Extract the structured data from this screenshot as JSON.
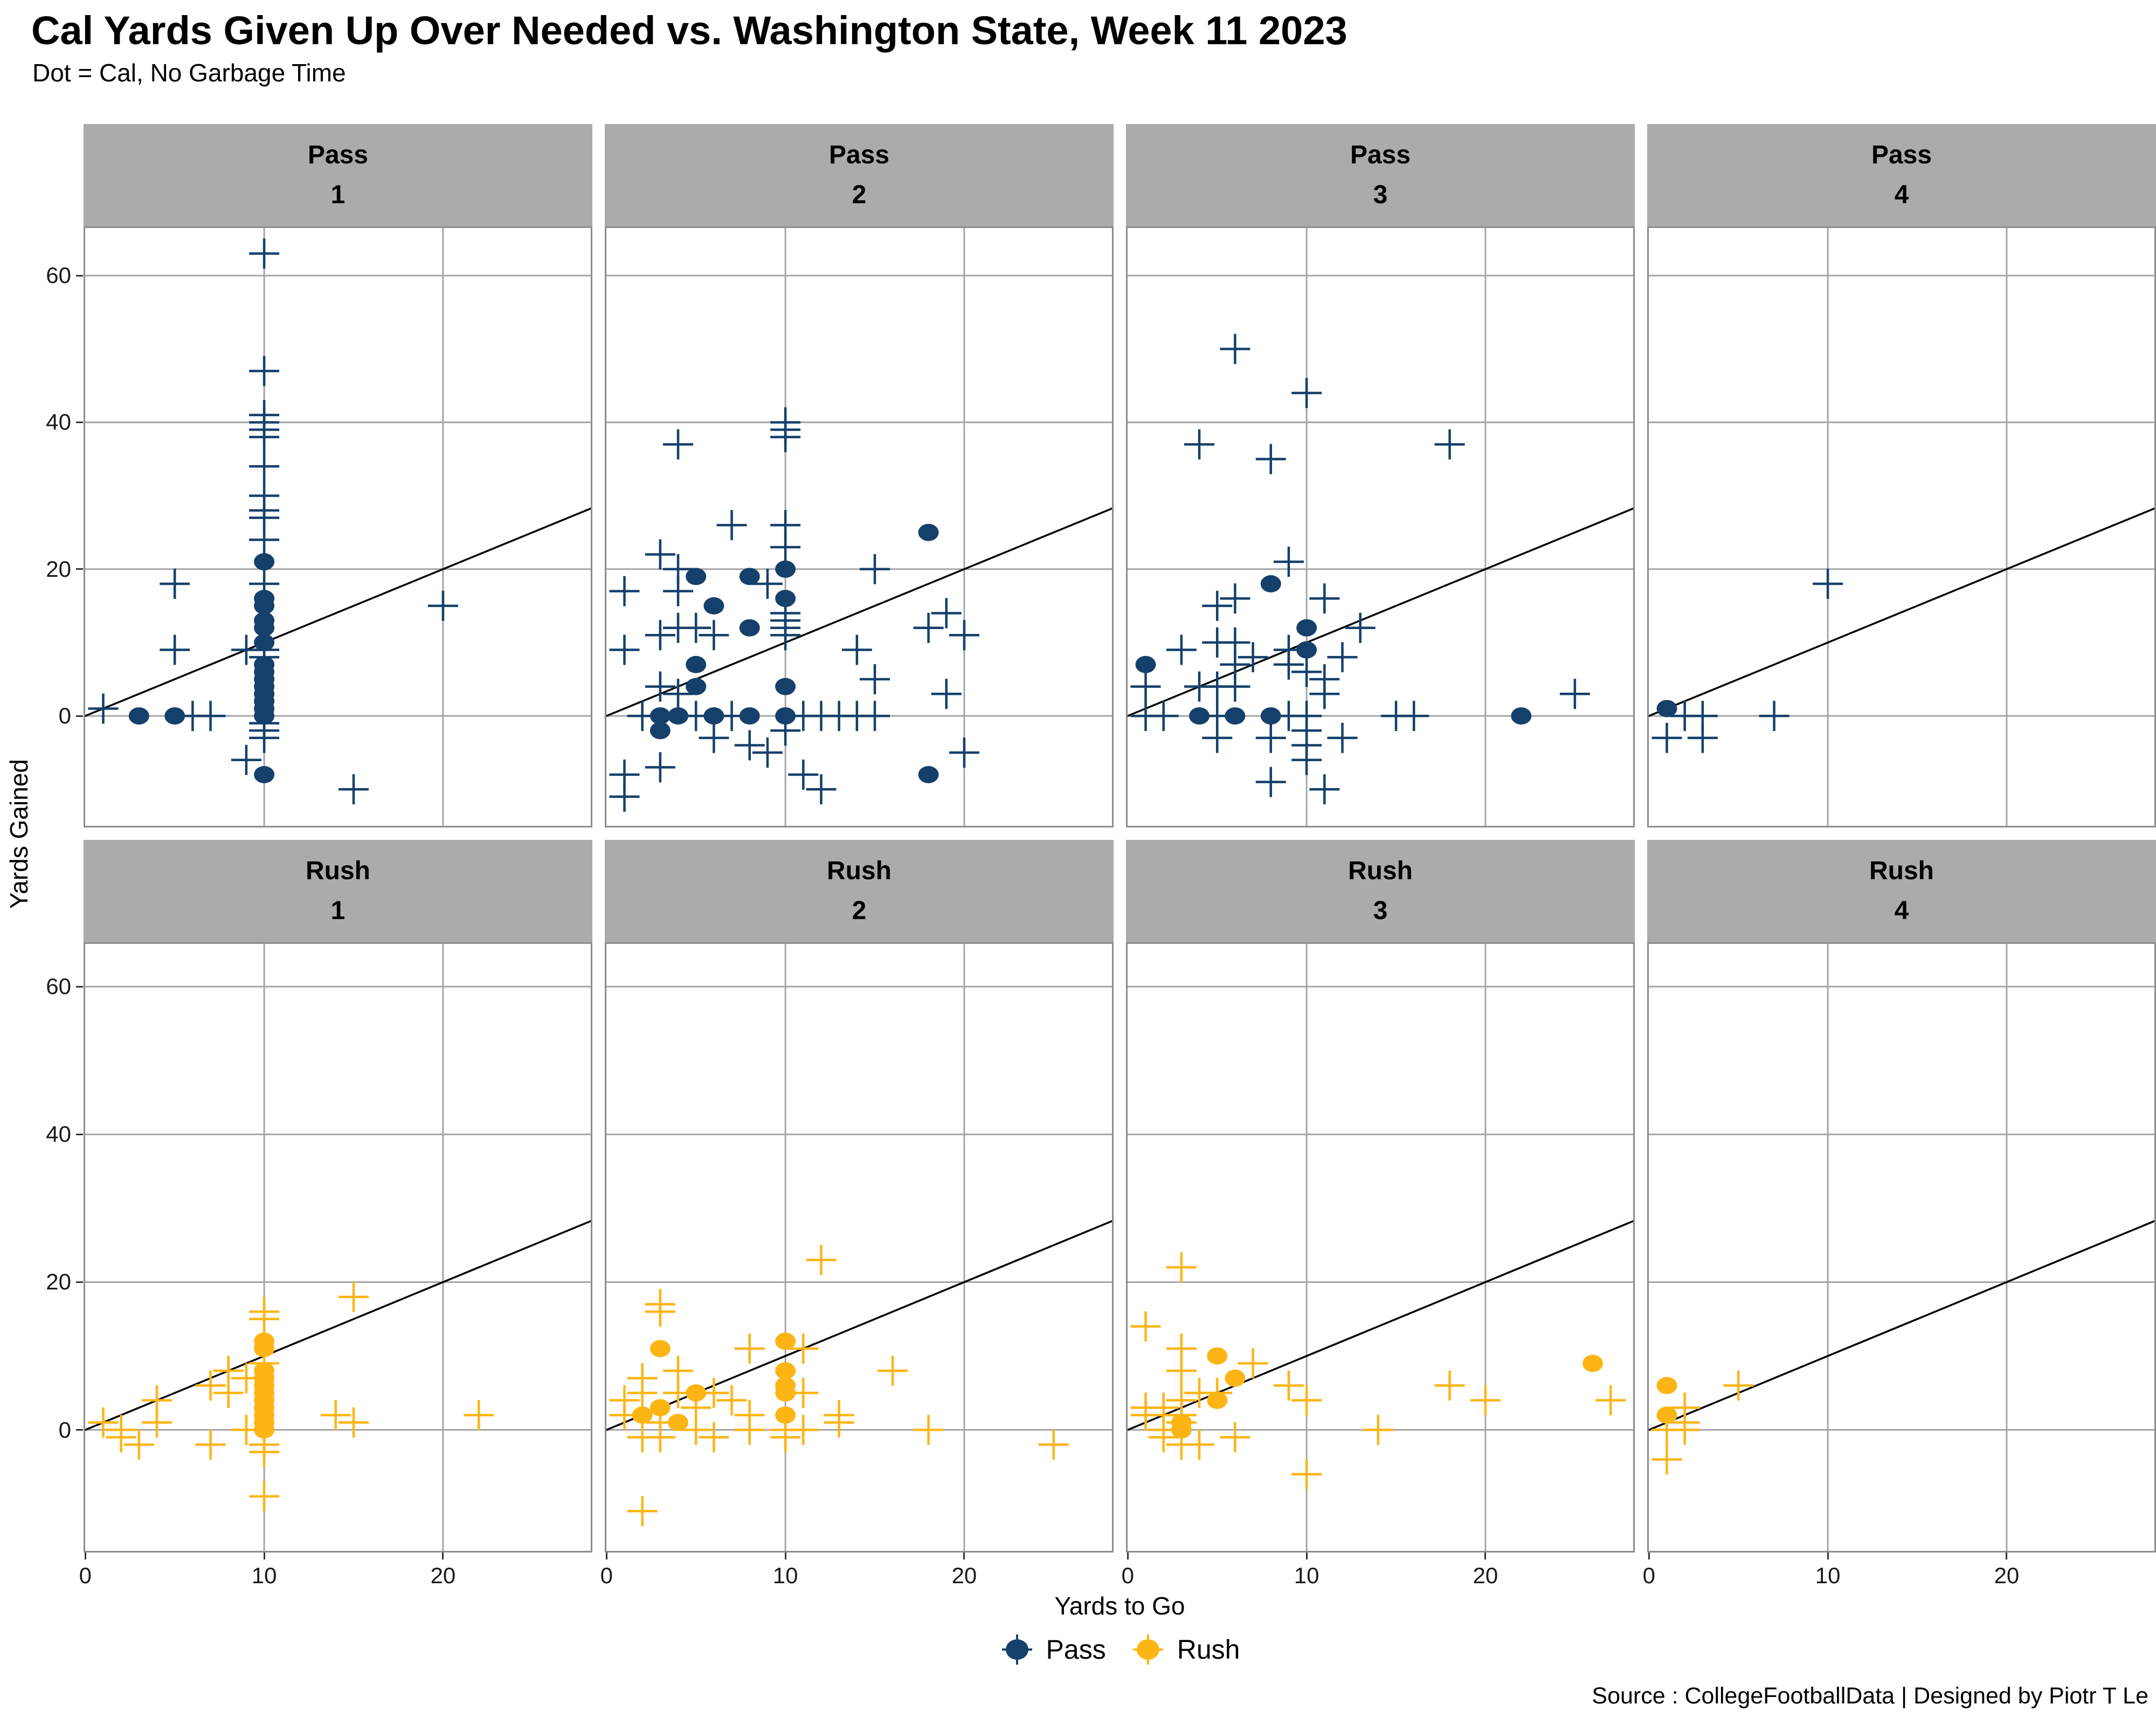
{
  "title": "Cal Yards Given Up Over Needed vs. Washington State, Week 11 2023",
  "subtitle": "Dot = Cal, No Garbage Time",
  "source": "Source : CollegeFootballData | Designed by Piotr T Le",
  "axes": {
    "x_label": "Yards to Go",
    "y_label": "Yards Gained",
    "x_ticks": [
      0,
      10,
      20
    ],
    "y_ticks": [
      60,
      40,
      20,
      0
    ]
  },
  "legend": {
    "items": [
      {
        "label": "Pass",
        "color": "#15406B"
      },
      {
        "label": "Rush",
        "color": "#FDB515"
      }
    ]
  },
  "colors": {
    "pass": "#15406B",
    "rush": "#FDB515",
    "strip_bg": "#ABABAB",
    "gridline": "#A5A5A5",
    "panel_border": "#8C8C8C",
    "reference_line": "#000000"
  },
  "chart_data": {
    "type": "scatter",
    "layout": "facet grid 2 rows (Pass, Rush) x 4 columns (downs 1-4)",
    "xlabel": "Yards to Go",
    "ylabel": "Yards Gained",
    "x_range": [
      -0.1,
      28.35
    ],
    "y_range": [
      -16,
      67
    ],
    "grid": "major gridlines at x=10,20 and y=0,20,40,60",
    "reference_line": "y = x diagonal in every facet",
    "marker_note": "dot marker = Cal (per subtitle); cross marker = unlabeled comparison plays",
    "legend_position": "bottom center",
    "facets": [
      {
        "play_type": "Pass",
        "down": "1",
        "dots": [
          [
            10,
            21
          ],
          [
            10,
            16
          ],
          [
            10,
            15
          ],
          [
            10,
            13
          ],
          [
            10,
            12
          ],
          [
            10,
            10
          ],
          [
            10,
            7
          ],
          [
            10,
            6
          ],
          [
            10,
            5
          ],
          [
            10,
            4
          ],
          [
            10,
            3
          ],
          [
            10,
            2
          ],
          [
            10,
            1
          ],
          [
            10,
            0
          ],
          [
            3,
            0
          ],
          [
            5,
            0
          ],
          [
            10,
            -8
          ]
        ],
        "crosses": [
          [
            10,
            63
          ],
          [
            10,
            47
          ],
          [
            10,
            41
          ],
          [
            10,
            40
          ],
          [
            10,
            39
          ],
          [
            10,
            38
          ],
          [
            10,
            34
          ],
          [
            10,
            30
          ],
          [
            10,
            28
          ],
          [
            10,
            27
          ],
          [
            10,
            24
          ],
          [
            5,
            18
          ],
          [
            10,
            18
          ],
          [
            20,
            15
          ],
          [
            5,
            9
          ],
          [
            9,
            9
          ],
          [
            10,
            9
          ],
          [
            10,
            8
          ],
          [
            1,
            1
          ],
          [
            6,
            0
          ],
          [
            7,
            0
          ],
          [
            10,
            -1
          ],
          [
            10,
            -2
          ],
          [
            10,
            -3
          ],
          [
            9,
            -6
          ],
          [
            15,
            -10
          ]
        ]
      },
      {
        "play_type": "Pass",
        "down": "2",
        "dots": [
          [
            18,
            25
          ],
          [
            5,
            19
          ],
          [
            8,
            19
          ],
          [
            10,
            20
          ],
          [
            10,
            16
          ],
          [
            6,
            15
          ],
          [
            8,
            12
          ],
          [
            5,
            7
          ],
          [
            5,
            4
          ],
          [
            10,
            4
          ],
          [
            3,
            0
          ],
          [
            4,
            0
          ],
          [
            6,
            0
          ],
          [
            8,
            0
          ],
          [
            10,
            0
          ],
          [
            3,
            -2
          ],
          [
            18,
            -8
          ]
        ],
        "crosses": [
          [
            4,
            37
          ],
          [
            10,
            40
          ],
          [
            10,
            39
          ],
          [
            10,
            38
          ],
          [
            7,
            26
          ],
          [
            10,
            26
          ],
          [
            10,
            23
          ],
          [
            3,
            22
          ],
          [
            4,
            20
          ],
          [
            4,
            17
          ],
          [
            9,
            18
          ],
          [
            1,
            17
          ],
          [
            15,
            20
          ],
          [
            10,
            14
          ],
          [
            10,
            13
          ],
          [
            10,
            12
          ],
          [
            10,
            11
          ],
          [
            3,
            11
          ],
          [
            4,
            12
          ],
          [
            5,
            12
          ],
          [
            6,
            11
          ],
          [
            1,
            9
          ],
          [
            18,
            12
          ],
          [
            19,
            14
          ],
          [
            20,
            11
          ],
          [
            14,
            9
          ],
          [
            15,
            5
          ],
          [
            3,
            4
          ],
          [
            4,
            3
          ],
          [
            19,
            3
          ],
          [
            2,
            0
          ],
          [
            5,
            0
          ],
          [
            7,
            0
          ],
          [
            11,
            0
          ],
          [
            12,
            0
          ],
          [
            13,
            0
          ],
          [
            14,
            0
          ],
          [
            15,
            0
          ],
          [
            10,
            -2
          ],
          [
            6,
            -3
          ],
          [
            8,
            -4
          ],
          [
            9,
            -5
          ],
          [
            3,
            -7
          ],
          [
            1,
            -8
          ],
          [
            11,
            -8
          ],
          [
            12,
            -10
          ],
          [
            1,
            -11
          ],
          [
            20,
            -5
          ]
        ]
      },
      {
        "play_type": "Pass",
        "down": "3",
        "dots": [
          [
            1,
            7
          ],
          [
            8,
            18
          ],
          [
            10,
            12
          ],
          [
            10,
            9
          ],
          [
            4,
            0
          ],
          [
            6,
            0
          ],
          [
            8,
            0
          ],
          [
            22,
            0
          ]
        ],
        "crosses": [
          [
            6,
            50
          ],
          [
            10,
            44
          ],
          [
            4,
            37
          ],
          [
            18,
            37
          ],
          [
            8,
            35
          ],
          [
            9,
            21
          ],
          [
            5,
            15
          ],
          [
            6,
            16
          ],
          [
            11,
            16
          ],
          [
            13,
            12
          ],
          [
            12,
            8
          ],
          [
            3,
            9
          ],
          [
            5,
            10
          ],
          [
            6,
            10
          ],
          [
            6,
            7
          ],
          [
            7,
            8
          ],
          [
            9,
            9
          ],
          [
            9,
            7
          ],
          [
            10,
            6
          ],
          [
            11,
            5
          ],
          [
            11,
            3
          ],
          [
            1,
            4
          ],
          [
            4,
            4
          ],
          [
            5,
            4
          ],
          [
            6,
            4
          ],
          [
            25,
            3
          ],
          [
            1,
            0
          ],
          [
            2,
            0
          ],
          [
            5,
            0
          ],
          [
            9,
            0
          ],
          [
            10,
            0
          ],
          [
            15,
            0
          ],
          [
            16,
            0
          ],
          [
            10,
            -2
          ],
          [
            10,
            -4
          ],
          [
            10,
            -6
          ],
          [
            5,
            -3
          ],
          [
            8,
            -3
          ],
          [
            12,
            -3
          ],
          [
            8,
            -9
          ],
          [
            11,
            -10
          ]
        ]
      },
      {
        "play_type": "Pass",
        "down": "4",
        "dots": [
          [
            1,
            1
          ]
        ],
        "crosses": [
          [
            10,
            18
          ],
          [
            2,
            0
          ],
          [
            3,
            0
          ],
          [
            7,
            0
          ],
          [
            1,
            -3
          ],
          [
            3,
            -3
          ]
        ]
      },
      {
        "play_type": "Rush",
        "down": "1",
        "dots": [
          [
            10,
            12
          ],
          [
            10,
            11
          ],
          [
            10,
            8
          ],
          [
            10,
            7
          ],
          [
            10,
            6
          ],
          [
            10,
            5
          ],
          [
            10,
            4
          ],
          [
            10,
            3
          ],
          [
            10,
            2
          ],
          [
            10,
            1
          ],
          [
            10,
            0
          ]
        ],
        "crosses": [
          [
            15,
            18
          ],
          [
            10,
            16
          ],
          [
            10,
            15
          ],
          [
            10,
            9
          ],
          [
            8,
            8
          ],
          [
            9,
            7
          ],
          [
            7,
            6
          ],
          [
            8,
            5
          ],
          [
            4,
            4
          ],
          [
            4,
            1
          ],
          [
            1,
            1
          ],
          [
            2,
            0
          ],
          [
            9,
            0
          ],
          [
            2,
            -1
          ],
          [
            3,
            -2
          ],
          [
            7,
            -2
          ],
          [
            10,
            -2
          ],
          [
            10,
            -3
          ],
          [
            10,
            -9
          ],
          [
            14,
            2
          ],
          [
            15,
            1
          ],
          [
            22,
            2
          ]
        ]
      },
      {
        "play_type": "Rush",
        "down": "2",
        "dots": [
          [
            3,
            11
          ],
          [
            10,
            12
          ],
          [
            10,
            8
          ],
          [
            10,
            6
          ],
          [
            10,
            5
          ],
          [
            10,
            2
          ],
          [
            5,
            5
          ],
          [
            2,
            2
          ],
          [
            3,
            3
          ],
          [
            4,
            1
          ]
        ],
        "crosses": [
          [
            12,
            23
          ],
          [
            3,
            17
          ],
          [
            3,
            16
          ],
          [
            8,
            11
          ],
          [
            11,
            11
          ],
          [
            4,
            8
          ],
          [
            16,
            8
          ],
          [
            2,
            7
          ],
          [
            6,
            5
          ],
          [
            11,
            5
          ],
          [
            2,
            5
          ],
          [
            4,
            5
          ],
          [
            7,
            4
          ],
          [
            1,
            4
          ],
          [
            5,
            3
          ],
          [
            13,
            2
          ],
          [
            8,
            2
          ],
          [
            1,
            2
          ],
          [
            13,
            1
          ],
          [
            3,
            1
          ],
          [
            5,
            0
          ],
          [
            8,
            0
          ],
          [
            10,
            0
          ],
          [
            11,
            0
          ],
          [
            18,
            0
          ],
          [
            3,
            -1
          ],
          [
            2,
            -1
          ],
          [
            6,
            -1
          ],
          [
            10,
            -1
          ],
          [
            25,
            -2
          ],
          [
            2,
            -11
          ]
        ]
      },
      {
        "play_type": "Rush",
        "down": "3",
        "dots": [
          [
            5,
            10
          ],
          [
            6,
            7
          ],
          [
            5,
            4
          ],
          [
            3,
            1
          ],
          [
            3,
            0
          ],
          [
            26,
            9
          ]
        ],
        "crosses": [
          [
            3,
            22
          ],
          [
            1,
            14
          ],
          [
            3,
            11
          ],
          [
            3,
            8
          ],
          [
            7,
            9
          ],
          [
            9,
            6
          ],
          [
            18,
            6
          ],
          [
            4,
            5
          ],
          [
            5,
            5
          ],
          [
            10,
            4
          ],
          [
            20,
            4
          ],
          [
            27,
            4
          ],
          [
            3,
            4
          ],
          [
            1,
            3
          ],
          [
            2,
            3
          ],
          [
            3,
            2
          ],
          [
            2,
            2
          ],
          [
            1,
            2
          ],
          [
            3,
            1
          ],
          [
            2,
            0
          ],
          [
            14,
            0
          ],
          [
            2,
            -1
          ],
          [
            6,
            -1
          ],
          [
            3,
            -2
          ],
          [
            4,
            -2
          ],
          [
            10,
            -6
          ]
        ]
      },
      {
        "play_type": "Rush",
        "down": "4",
        "dots": [
          [
            1,
            6
          ],
          [
            1,
            2
          ]
        ],
        "crosses": [
          [
            5,
            6
          ],
          [
            2,
            3
          ],
          [
            2,
            1
          ],
          [
            1,
            0
          ],
          [
            2,
            0
          ],
          [
            1,
            -4
          ]
        ]
      }
    ]
  }
}
